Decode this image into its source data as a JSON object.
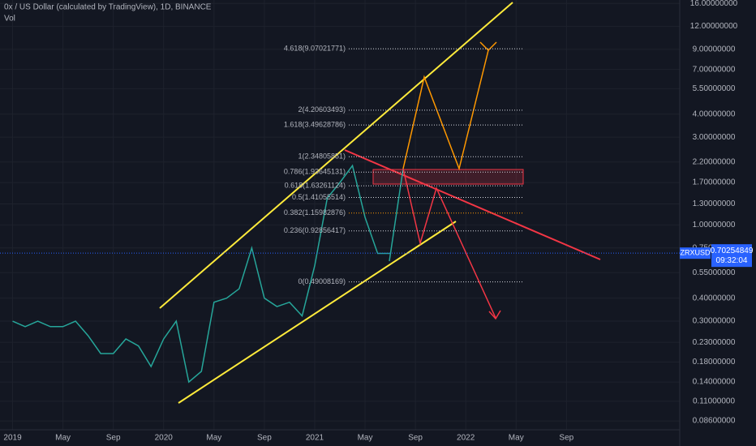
{
  "title": "0x / US Dollar (calculated by TradingView), 1D, BINANCE",
  "volume_label": "Vol",
  "symbol": "ZRXUSD",
  "last_price": 0.70254849,
  "countdown": "09:32:04",
  "chart_data": {
    "type": "line",
    "log_scale": true,
    "color": "#26a69a",
    "x": [
      "2019-01",
      "2019-02",
      "2019-03",
      "2019-04",
      "2019-05",
      "2019-06",
      "2019-07",
      "2019-08",
      "2019-09",
      "2019-10",
      "2019-11",
      "2019-12",
      "2020-01",
      "2020-02",
      "2020-03",
      "2020-04",
      "2020-05",
      "2020-06",
      "2020-07",
      "2020-08",
      "2020-09",
      "2020-10",
      "2020-11",
      "2020-12",
      "2021-01",
      "2021-02",
      "2021-03",
      "2021-04",
      "2021-05",
      "2021-06",
      "2021-07"
    ],
    "values": [
      0.3,
      0.28,
      0.3,
      0.28,
      0.28,
      0.3,
      0.25,
      0.2,
      0.2,
      0.24,
      0.22,
      0.17,
      0.24,
      0.3,
      0.14,
      0.16,
      0.38,
      0.4,
      0.45,
      0.75,
      0.4,
      0.36,
      0.38,
      0.32,
      0.6,
      1.4,
      1.7,
      2.1,
      1.1,
      0.7,
      0.7
    ],
    "xlim": [
      "2018-12",
      "2023-06"
    ],
    "xticks": [
      {
        "value": "2019-01",
        "label": "2019"
      },
      {
        "value": "2019-05",
        "label": "May"
      },
      {
        "value": "2019-09",
        "label": "Sep"
      },
      {
        "value": "2020-01",
        "label": "2020"
      },
      {
        "value": "2020-05",
        "label": "May"
      },
      {
        "value": "2020-09",
        "label": "Sep"
      },
      {
        "value": "2021-01",
        "label": "2021"
      },
      {
        "value": "2021-05",
        "label": "May"
      },
      {
        "value": "2021-09",
        "label": "Sep"
      },
      {
        "value": "2022-01",
        "label": "2022"
      },
      {
        "value": "2022-05",
        "label": "May"
      },
      {
        "value": "2022-09",
        "label": "Sep"
      }
    ],
    "ylim": [
      0.077,
      16.7
    ],
    "yticks": [
      {
        "value": 16,
        "label": "16.00000000"
      },
      {
        "value": 12,
        "label": "12.00000000"
      },
      {
        "value": 9,
        "label": "9.00000000"
      },
      {
        "value": 7,
        "label": "7.00000000"
      },
      {
        "value": 5.5,
        "label": "5.50000000"
      },
      {
        "value": 4,
        "label": "4.00000000"
      },
      {
        "value": 3,
        "label": "3.00000000"
      },
      {
        "value": 2.2,
        "label": "2.20000000"
      },
      {
        "value": 1.7,
        "label": "1.70000000"
      },
      {
        "value": 1.3,
        "label": "1.30000000"
      },
      {
        "value": 1,
        "label": "1.00000000"
      },
      {
        "value": 0.75,
        "label": "0.75000000"
      },
      {
        "value": 0.55,
        "label": "0.55000000"
      },
      {
        "value": 0.4,
        "label": "0.40000000"
      },
      {
        "value": 0.3,
        "label": "0.30000000"
      },
      {
        "value": 0.23,
        "label": "0.23000000"
      },
      {
        "value": 0.18,
        "label": "0.18000000"
      },
      {
        "value": 0.14,
        "label": "0.14000000"
      },
      {
        "value": 0.11,
        "label": "0.11000000"
      },
      {
        "value": 0.086,
        "label": "0.08600000"
      }
    ],
    "fib_levels": [
      {
        "label": "4.618(9.07021771)",
        "price": 9.07021771,
        "color": "#d1d4dc"
      },
      {
        "label": "2(4.20603493)",
        "price": 4.20603493,
        "color": "#d1d4dc"
      },
      {
        "label": "1.618(3.49628786)",
        "price": 3.49628786,
        "color": "#d1d4dc"
      },
      {
        "label": "1(2.34805851)",
        "price": 2.34805851,
        "color": "#d1d4dc"
      },
      {
        "label": "0.786(1.93645131)",
        "price": 1.93645131,
        "color": "#d1d4dc"
      },
      {
        "label": "0.618(1.63261124)",
        "price": 1.63261124,
        "color": "#d1d4dc"
      },
      {
        "label": "0.5(1.41055514)",
        "price": 1.41055514,
        "color": "#d1d4dc"
      },
      {
        "label": "0.382(1.15982876)",
        "price": 1.15982876,
        "color": "#ff9800"
      },
      {
        "label": "0.236(0.92856417)",
        "price": 0.92856417,
        "color": "#d1d4dc"
      },
      {
        "label": "0(0.49008169)",
        "price": 0.49008169,
        "color": "#d1d4dc"
      }
    ]
  }
}
